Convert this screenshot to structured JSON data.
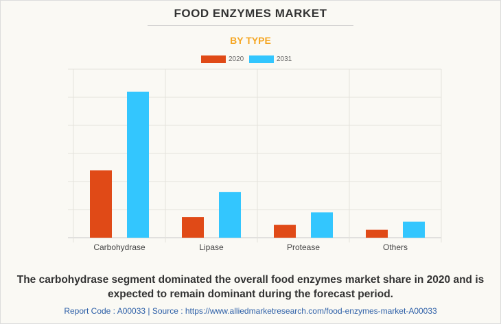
{
  "header": {
    "title": "FOOD ENZYMES MARKET",
    "subtitle": "BY TYPE"
  },
  "chart_data": {
    "type": "bar",
    "title": "FOOD ENZYMES MARKET",
    "subtitle": "BY TYPE",
    "xlabel": "",
    "ylabel": "",
    "categories": [
      "Carbohydrase",
      "Lipase",
      "Protease",
      "Others"
    ],
    "series": [
      {
        "name": "2020",
        "color": "#e04a17",
        "values": [
          2.4,
          0.73,
          0.46,
          0.28
        ]
      },
      {
        "name": "2031",
        "color": "#33c6fe",
        "values": [
          5.2,
          1.63,
          0.9,
          0.57
        ]
      }
    ],
    "ylim": [
      0,
      6
    ],
    "y_gridlines": 6,
    "y_tick_labels_shown": false,
    "grid": true,
    "legend_position": "top-center"
  },
  "footer": {
    "caption": "The carbohydrase segment dominated the overall food enzymes market share in 2020 and is expected to remain dominant during the forecast period.",
    "source": "Report Code : A00033  |  Source : https://www.alliedmarketresearch.com/food-enzymes-market-A00033"
  }
}
